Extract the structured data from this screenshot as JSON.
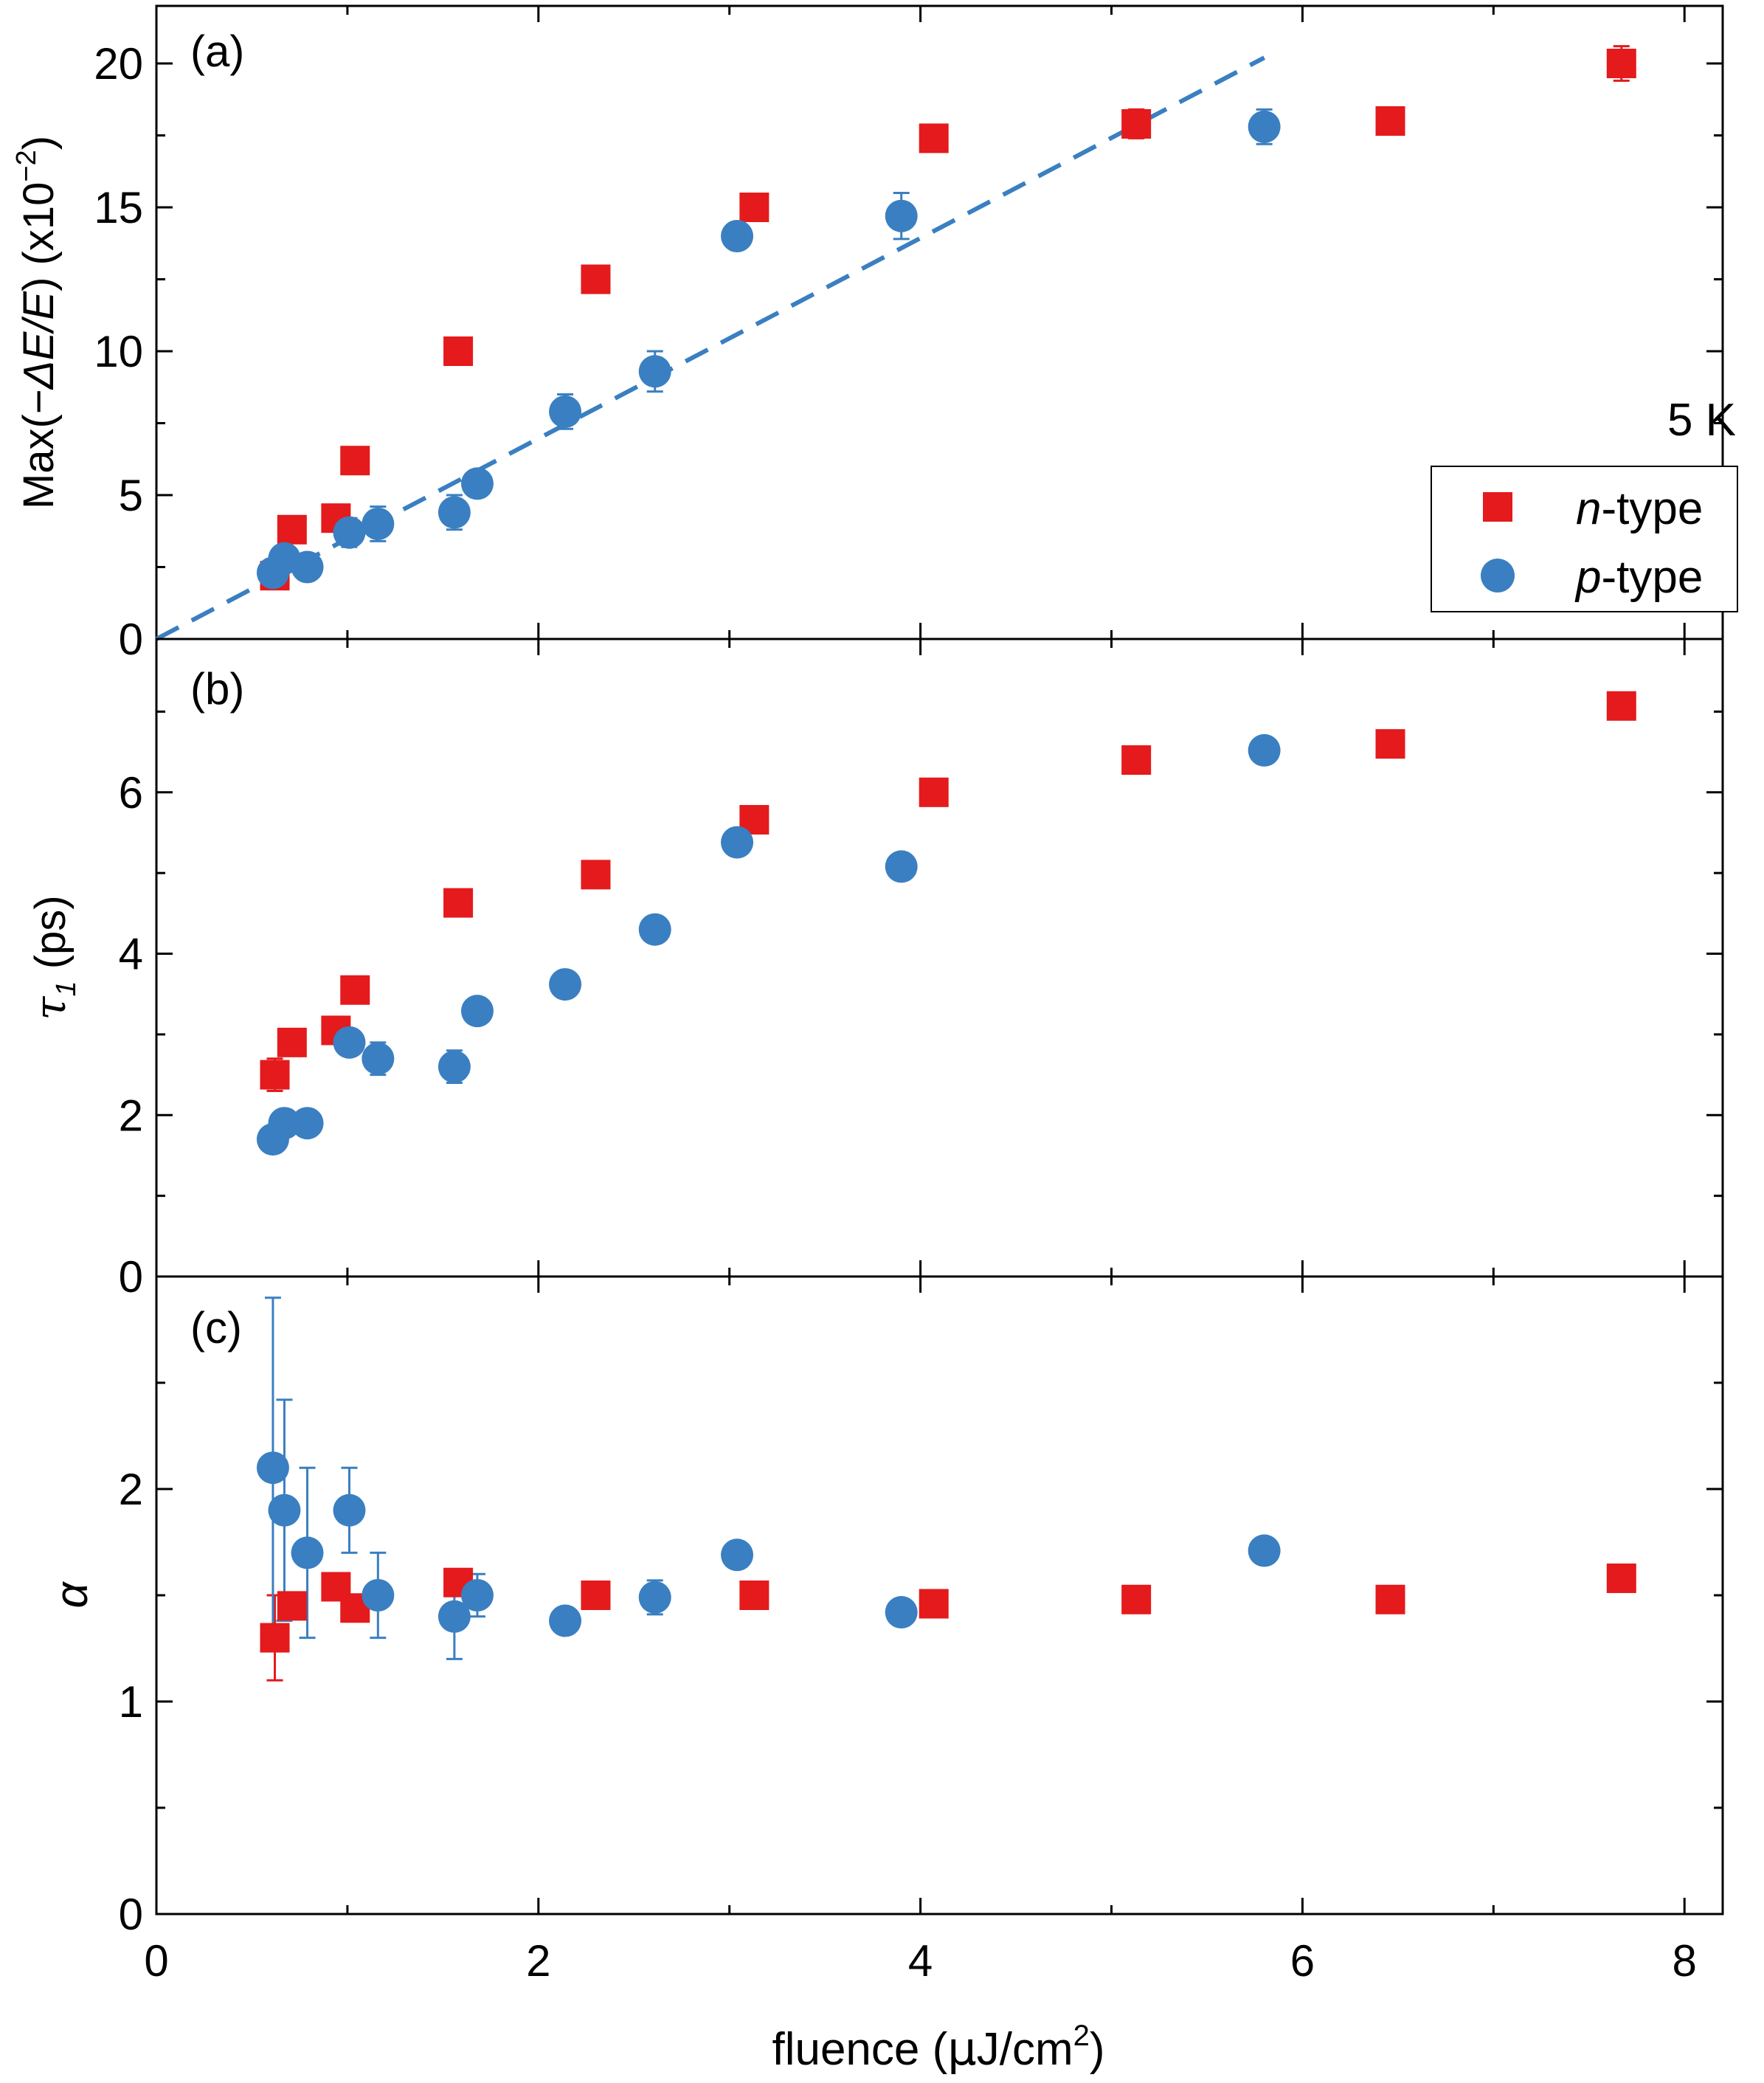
{
  "figure": {
    "xlabel_main": "fluence (",
    "xlabel_mu": "μ",
    "xlabel_unit": "J/cm",
    "xlabel_sup": "2",
    "xlabel_close": ")",
    "xlim": [
      0,
      8.2
    ],
    "xticks": [
      0,
      2,
      4,
      6,
      8
    ],
    "xtick_labels": [
      "0",
      "2",
      "4",
      "6",
      "8"
    ]
  },
  "colors": {
    "n_type": "#e41a1c",
    "p_type": "#3a7fc1",
    "axis": "#000000"
  },
  "chart_data": [
    {
      "type": "scatter",
      "panel_label": "(a)",
      "ylabel_prefix": "Max(−",
      "ylabel_italic": "ΔE/E",
      "ylabel_suffix": ") (x10",
      "ylabel_sup": "−2",
      "ylabel_close": ")",
      "ylim": [
        0,
        22
      ],
      "yticks": [
        0,
        5,
        10,
        15,
        20
      ],
      "ytick_labels": [
        "0",
        "5",
        "10",
        "15",
        "20"
      ],
      "annotation": "5 K",
      "legend": {
        "position": "right",
        "entries": [
          {
            "italic": "n",
            "suffix": "-type",
            "marker": "square"
          },
          {
            "italic": "p",
            "suffix": "-type",
            "marker": "circle"
          }
        ]
      },
      "fit_line": {
        "style": "dashed",
        "x": [
          0,
          5.8
        ],
        "y": [
          0,
          20.2
        ]
      },
      "series": [
        {
          "name": "n-type",
          "marker": "square",
          "x": [
            0.62,
            0.71,
            0.94,
            1.04,
            1.58,
            2.3,
            3.13,
            4.07,
            5.13,
            6.46,
            7.67
          ],
          "y": [
            2.2,
            3.8,
            4.2,
            6.2,
            10.0,
            12.5,
            15.0,
            17.4,
            17.9,
            18.0,
            20.0
          ],
          "err": [
            0.2,
            0.2,
            0.2,
            0.2,
            0.2,
            0.2,
            0.2,
            0.2,
            0.5,
            0.3,
            0.6
          ]
        },
        {
          "name": "p-type",
          "marker": "circle",
          "x": [
            0.61,
            0.67,
            0.79,
            1.01,
            1.16,
            1.56,
            1.68,
            2.14,
            2.61,
            3.04,
            3.9,
            5.8
          ],
          "y": [
            2.3,
            2.8,
            2.5,
            3.7,
            4.0,
            4.4,
            5.4,
            7.9,
            9.3,
            14.0,
            14.7,
            17.8
          ],
          "err": [
            0.2,
            0.2,
            0.2,
            0.5,
            0.6,
            0.6,
            0.4,
            0.6,
            0.7,
            0.4,
            0.8,
            0.6
          ]
        }
      ]
    },
    {
      "type": "scatter",
      "panel_label": "(b)",
      "ylabel_prefix": "τ",
      "ylabel_sub": "1",
      "ylabel_suffix": " (ps)",
      "ylim": [
        0,
        7.9
      ],
      "yticks": [
        0,
        2,
        4,
        6
      ],
      "ytick_labels": [
        "0",
        "2",
        "4",
        "6"
      ],
      "series": [
        {
          "name": "n-type",
          "marker": "square",
          "x": [
            0.62,
            0.71,
            0.94,
            1.04,
            1.58,
            2.3,
            3.13,
            4.07,
            5.13,
            6.46,
            7.67
          ],
          "y": [
            2.5,
            2.9,
            3.05,
            3.55,
            4.63,
            4.98,
            5.66,
            6.0,
            6.4,
            6.6,
            7.07
          ],
          "err": [
            0.2,
            0.1,
            0.1,
            0.1,
            0.05,
            0.05,
            0.05,
            0.05,
            0.05,
            0.05,
            0.05
          ]
        },
        {
          "name": "p-type",
          "marker": "circle",
          "x": [
            0.61,
            0.67,
            0.79,
            1.01,
            1.16,
            1.56,
            1.68,
            2.14,
            2.61,
            3.04,
            3.9,
            5.8
          ],
          "y": [
            1.7,
            1.9,
            1.9,
            2.9,
            2.7,
            2.6,
            3.29,
            3.62,
            4.3,
            5.38,
            5.08,
            6.52
          ],
          "err": [
            0.15,
            0.15,
            0.15,
            0.1,
            0.2,
            0.2,
            0.1,
            0.1,
            0.05,
            0.05,
            0.05,
            0.05
          ]
        }
      ]
    },
    {
      "type": "scatter",
      "panel_label": "(c)",
      "ylabel_prefix": "α",
      "ylim": [
        0,
        3.0
      ],
      "yticks": [
        0,
        1,
        2
      ],
      "ytick_labels": [
        "0",
        "1",
        "2"
      ],
      "series": [
        {
          "name": "n-type",
          "marker": "square",
          "x": [
            0.62,
            0.71,
            0.94,
            1.04,
            1.58,
            2.3,
            3.13,
            4.07,
            5.13,
            6.46,
            7.67
          ],
          "y": [
            1.3,
            1.45,
            1.54,
            1.44,
            1.56,
            1.5,
            1.5,
            1.46,
            1.48,
            1.48,
            1.58
          ],
          "err": [
            0.2,
            0.05,
            0.05,
            0.05,
            0.05,
            0.03,
            0.03,
            0.03,
            0.03,
            0.03,
            0.03
          ]
        },
        {
          "name": "p-type",
          "marker": "circle",
          "x": [
            0.61,
            0.67,
            0.79,
            1.01,
            1.16,
            1.56,
            1.68,
            2.14,
            2.61,
            3.04,
            3.9,
            5.8
          ],
          "y": [
            2.1,
            1.9,
            1.7,
            1.9,
            1.5,
            1.4,
            1.5,
            1.38,
            1.49,
            1.69,
            1.42,
            1.71
          ],
          "err": [
            0.8,
            0.52,
            0.4,
            0.2,
            0.2,
            0.2,
            0.1,
            0.05,
            0.08,
            0.05,
            0.03,
            0.03
          ]
        }
      ]
    }
  ]
}
